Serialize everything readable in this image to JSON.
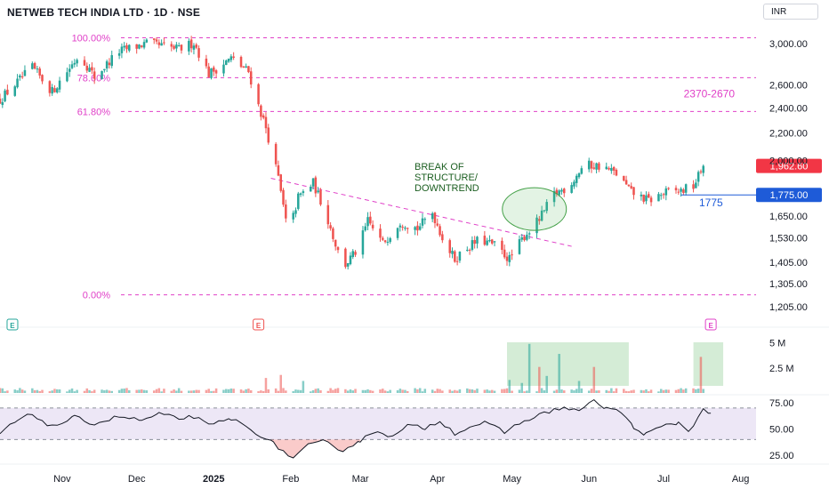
{
  "header": {
    "title": "NETWEB TECH INDIA LTD · 1D · NSE",
    "currency": "INR"
  },
  "colors": {
    "up": "#26a69a",
    "down": "#ef5350",
    "fib": "#e040c8",
    "trendline": "#e040c8",
    "annotation": "#1b5e20",
    "support": "#1e5bd8",
    "price_tag": "#f23645",
    "rsi": "#131722",
    "rsi_band": "#ede7f6"
  },
  "chart_data": [
    {
      "type": "candlestick",
      "name": "price",
      "y_scale": "log",
      "y_ticks": [
        "3,000.00",
        "2,600.00",
        "2,400.00",
        "2,200.00",
        "2,000.00",
        "1,650.00",
        "1,530.00",
        "1,405.00",
        "1,305.00",
        "1,205.00"
      ],
      "y_tick_values": [
        3000,
        2600,
        2400,
        2200,
        2000,
        1650,
        1530,
        1405,
        1305,
        1205
      ],
      "ylim": [
        1150,
        3200
      ],
      "x_ticks": [
        "Nov",
        "Dec",
        "2025",
        "Feb",
        "Mar",
        "Apr",
        "May",
        "Jun",
        "Jul",
        "Aug"
      ],
      "x_tick_dates": [
        "2024-11-01",
        "2024-12-01",
        "2025-01-01",
        "2025-02-01",
        "2025-03-01",
        "2025-04-01",
        "2025-05-01",
        "2025-06-01",
        "2025-07-01",
        "2025-08-01"
      ],
      "xlim": [
        "2024-10-07",
        "2025-08-09"
      ],
      "last_price": "1,962.60",
      "last_value": 1962.6,
      "fib_levels": [
        {
          "label": "100.00%",
          "value": 3060
        },
        {
          "label": "78.60%",
          "value": 2665
        },
        {
          "label": "61.80%",
          "value": 2370
        },
        {
          "label": "0.00%",
          "value": 1255
        }
      ],
      "target_label": "2370-2670",
      "support": {
        "label": "1775",
        "tag": "1,775.00",
        "value": 1775,
        "from": "2025-07-08"
      },
      "trendline": {
        "from": [
          "2025-01-24",
          1880
        ],
        "to": [
          "2025-05-25",
          1485
        ]
      },
      "breakout_annotation": [
        "BREAK OF",
        "STRUCTURE/",
        "DOWNTREND"
      ],
      "breakout_ellipse": {
        "date": "2025-05-10",
        "value": 1690
      },
      "earnings_markers": [
        {
          "label": "E",
          "date": "2024-10-12",
          "color": "#26a69a"
        },
        {
          "label": "E",
          "date": "2025-01-19",
          "color": "#ef5350"
        },
        {
          "label": "E",
          "date": "2025-07-20",
          "color": "#e040c8"
        }
      ],
      "segments": [
        [
          "2024-10-07",
          2470
        ],
        [
          "2024-10-20",
          2760
        ],
        [
          "2024-10-28",
          2540
        ],
        [
          "2024-11-08",
          2890
        ],
        [
          "2024-11-14",
          2670
        ],
        [
          "2024-11-24",
          2920
        ],
        [
          "2024-12-05",
          3000
        ],
        [
          "2024-12-18",
          2940
        ],
        [
          "2024-12-24",
          3010
        ],
        [
          "2024-12-30",
          2700
        ],
        [
          "2025-01-08",
          2850
        ],
        [
          "2025-01-15",
          2720
        ],
        [
          "2025-01-19",
          2420
        ],
        [
          "2025-01-22",
          2240
        ],
        [
          "2025-01-27",
          1880
        ],
        [
          "2025-01-31",
          1540
        ],
        [
          "2025-02-04",
          1760
        ],
        [
          "2025-02-10",
          1850
        ],
        [
          "2025-02-15",
          1670
        ],
        [
          "2025-02-22",
          1380
        ],
        [
          "2025-02-28",
          1470
        ],
        [
          "2025-03-04",
          1620
        ],
        [
          "2025-03-10",
          1500
        ],
        [
          "2025-03-17",
          1620
        ],
        [
          "2025-03-24",
          1580
        ],
        [
          "2025-03-30",
          1670
        ],
        [
          "2025-04-04",
          1500
        ],
        [
          "2025-04-08",
          1420
        ],
        [
          "2025-04-12",
          1470
        ],
        [
          "2025-04-18",
          1520
        ],
        [
          "2025-04-24",
          1490
        ],
        [
          "2025-04-30",
          1420
        ],
        [
          "2025-05-06",
          1540
        ],
        [
          "2025-05-12",
          1630
        ],
        [
          "2025-05-18",
          1780
        ],
        [
          "2025-05-24",
          1830
        ],
        [
          "2025-05-30",
          1970
        ],
        [
          "2025-06-06",
          1960
        ],
        [
          "2025-06-12",
          1910
        ],
        [
          "2025-06-18",
          1790
        ],
        [
          "2025-06-25",
          1740
        ],
        [
          "2025-07-02",
          1790
        ],
        [
          "2025-07-08",
          1800
        ],
        [
          "2025-07-13",
          1830
        ],
        [
          "2025-07-17",
          1962
        ]
      ]
    },
    {
      "type": "bar",
      "name": "volume",
      "y_ticks": [
        "5 M",
        "2.5 M"
      ],
      "y_tick_values": [
        5000000,
        2500000
      ],
      "ylim": [
        0,
        5500000
      ],
      "spikes": [
        {
          "date": "2025-01-22",
          "value": 1500000
        },
        {
          "date": "2025-01-28",
          "value": 1800000
        },
        {
          "date": "2025-02-06",
          "value": 1200000
        },
        {
          "date": "2025-04-30",
          "value": 1300000
        },
        {
          "date": "2025-05-05",
          "value": 1000000
        },
        {
          "date": "2025-05-08",
          "value": 4900000
        },
        {
          "date": "2025-05-12",
          "value": 2600000
        },
        {
          "date": "2025-05-15",
          "value": 1700000
        },
        {
          "date": "2025-05-20",
          "value": 3900000
        },
        {
          "date": "2025-05-23",
          "value": 2300000
        },
        {
          "date": "2025-05-28",
          "value": 1200000
        },
        {
          "date": "2025-06-03",
          "value": 2600000
        },
        {
          "date": "2025-06-06",
          "value": 1200000
        },
        {
          "date": "2025-07-16",
          "value": 3600000
        },
        {
          "date": "2025-07-18",
          "value": 1500000
        }
      ],
      "highlight_boxes": [
        {
          "from": "2025-04-29",
          "to": "2025-06-17"
        },
        {
          "from": "2025-07-13",
          "to": "2025-07-25"
        }
      ]
    },
    {
      "type": "line",
      "name": "rsi",
      "y_ticks": [
        "75.00",
        "50.00",
        "25.00"
      ],
      "y_tick_values": [
        75,
        50,
        25
      ],
      "ylim": [
        20,
        80
      ],
      "band": [
        40,
        70
      ],
      "segments": [
        [
          "2024-10-07",
          46
        ],
        [
          "2024-10-14",
          58
        ],
        [
          "2024-10-20",
          64
        ],
        [
          "2024-10-28",
          52
        ],
        [
          "2024-11-06",
          61
        ],
        [
          "2024-11-14",
          55
        ],
        [
          "2024-11-24",
          62
        ],
        [
          "2024-12-03",
          58
        ],
        [
          "2024-12-10",
          64
        ],
        [
          "2024-12-18",
          60
        ],
        [
          "2024-12-24",
          62
        ],
        [
          "2024-12-30",
          53
        ],
        [
          "2025-01-08",
          60
        ],
        [
          "2025-01-14",
          52
        ],
        [
          "2025-01-20",
          44
        ],
        [
          "2025-01-25",
          36
        ],
        [
          "2025-02-02",
          22
        ],
        [
          "2025-02-08",
          34
        ],
        [
          "2025-02-14",
          38
        ],
        [
          "2025-02-22",
          30
        ],
        [
          "2025-03-01",
          39
        ],
        [
          "2025-03-08",
          49
        ],
        [
          "2025-03-14",
          42
        ],
        [
          "2025-03-20",
          53
        ],
        [
          "2025-03-27",
          51
        ],
        [
          "2025-04-02",
          58
        ],
        [
          "2025-04-08",
          46
        ],
        [
          "2025-04-14",
          52
        ],
        [
          "2025-04-20",
          56
        ],
        [
          "2025-04-28",
          47
        ],
        [
          "2025-05-06",
          58
        ],
        [
          "2025-05-12",
          63
        ],
        [
          "2025-05-20",
          70
        ],
        [
          "2025-05-28",
          68
        ],
        [
          "2025-06-03",
          76
        ],
        [
          "2025-06-08",
          70
        ],
        [
          "2025-06-14",
          66
        ],
        [
          "2025-06-19",
          51
        ],
        [
          "2025-06-24",
          45
        ],
        [
          "2025-06-30",
          52
        ],
        [
          "2025-07-07",
          56
        ],
        [
          "2025-07-11",
          48
        ],
        [
          "2025-07-17",
          68
        ],
        [
          "2025-07-20",
          65
        ]
      ]
    }
  ]
}
